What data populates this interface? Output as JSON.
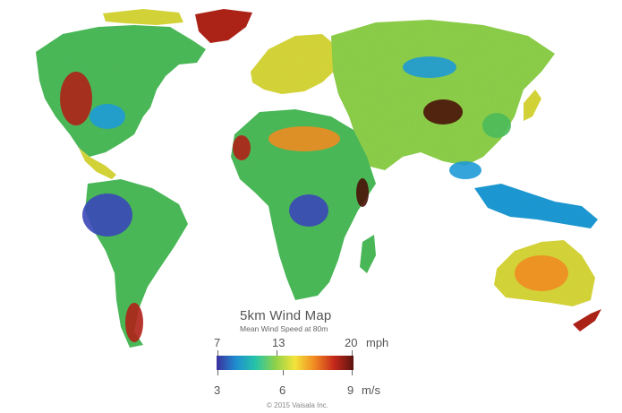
{
  "map": {
    "title": "5km Wind Map",
    "subtitle": "Mean Wind Speed at 80m",
    "copyright": "© 2015 Vaisala Inc."
  },
  "legend": {
    "mph_ticks": [
      "7",
      "13",
      "20"
    ],
    "mph_unit": "mph",
    "ms_ticks": [
      "3",
      "6",
      "9"
    ],
    "ms_unit": "m/s",
    "gradient_colors": [
      "#3b2f9e",
      "#1f8fd0",
      "#26c4a8",
      "#8ed14a",
      "#f3e43a",
      "#f08a22",
      "#c6281c",
      "#5a1410"
    ]
  },
  "palette": {
    "ocean": "#ffffff",
    "calm": "#3a48b8",
    "low": "#1f9bd6",
    "moderate": "#4cbc5a",
    "breezy": "#d8d83a",
    "strong": "#ee8c22",
    "very_strong": "#b02218",
    "extreme": "#4a1208"
  }
}
